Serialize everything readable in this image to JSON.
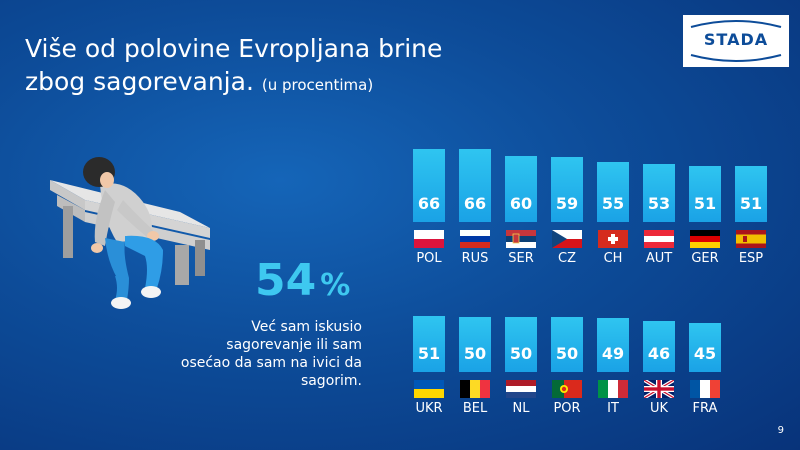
{
  "title": {
    "main_line1": "Više od polovine Evropljana brine",
    "main_line2": "zbog sagorevanja.",
    "subtitle": "(u procentima)"
  },
  "logo": {
    "text": "STADA"
  },
  "highlight": {
    "value": "54",
    "unit": "%",
    "description_lines": [
      "Već sam iskusio",
      "sagorevanje ili sam",
      "osećao da sam na ivici da",
      "sagorim."
    ]
  },
  "page_number": "9",
  "colors": {
    "background": "#0d4c99",
    "bar": "#2fc5f0",
    "accent": "#3ec8f0"
  },
  "chart_data": {
    "type": "bar",
    "ylim": [
      0,
      100
    ],
    "grid": false,
    "rows": [
      {
        "categories": [
          "POL",
          "RUS",
          "SER",
          "CZ",
          "CH",
          "AUT",
          "GER",
          "ESP"
        ],
        "values": [
          66,
          66,
          60,
          59,
          55,
          53,
          51,
          51
        ],
        "flags": [
          "pl",
          "ru",
          "rs",
          "cz",
          "ch",
          "at",
          "de",
          "es"
        ]
      },
      {
        "categories": [
          "UKR",
          "BEL",
          "NL",
          "POR",
          "IT",
          "UK",
          "FRA"
        ],
        "values": [
          51,
          50,
          50,
          50,
          49,
          46,
          45
        ],
        "flags": [
          "ua",
          "be",
          "nl",
          "pt",
          "it",
          "gb",
          "fr"
        ]
      }
    ]
  }
}
